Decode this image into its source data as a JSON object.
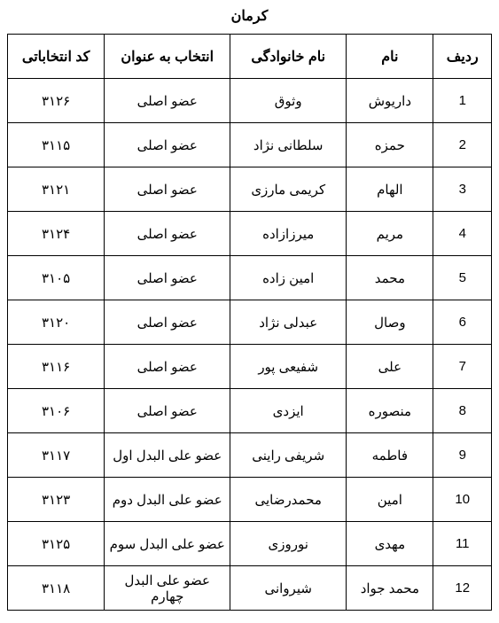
{
  "title": "کرمان",
  "columns": {
    "row": "ردیف",
    "fname": "نام",
    "lname": "نام خانوادگی",
    "role": "انتخاب به عنوان",
    "code": "کد انتخاباتی"
  },
  "rows": [
    {
      "row": "1",
      "fname": "داریوش",
      "lname": "وثوق",
      "role": "عضو اصلی",
      "code": "۳۱۲۶"
    },
    {
      "row": "2",
      "fname": "حمزه",
      "lname": "سلطانی نژاد",
      "role": "عضو اصلی",
      "code": "۳۱۱۵"
    },
    {
      "row": "3",
      "fname": "الهام",
      "lname": "کریمی مارزی",
      "role": "عضو اصلی",
      "code": "۳۱۲۱"
    },
    {
      "row": "4",
      "fname": "مریم",
      "lname": "میرزازاده",
      "role": "عضو اصلی",
      "code": "۳۱۲۴"
    },
    {
      "row": "5",
      "fname": "محمد",
      "lname": "امین زاده",
      "role": "عضو اصلی",
      "code": "۳۱۰۵"
    },
    {
      "row": "6",
      "fname": "وصال",
      "lname": "عبدلی نژاد",
      "role": "عضو اصلی",
      "code": "۳۱۲۰"
    },
    {
      "row": "7",
      "fname": "علی",
      "lname": "شفیعی پور",
      "role": "عضو اصلی",
      "code": "۳۱۱۶"
    },
    {
      "row": "8",
      "fname": "منصوره",
      "lname": "ایزدی",
      "role": "عضو اصلی",
      "code": "۳۱۰۶"
    },
    {
      "row": "9",
      "fname": "فاطمه",
      "lname": "شریفی راینی",
      "role": "عضو علی البدل اول",
      "code": "۳۱۱۷"
    },
    {
      "row": "10",
      "fname": "امین",
      "lname": "محمدرضایی",
      "role": "عضو علی البدل دوم",
      "code": "۳۱۲۳"
    },
    {
      "row": "11",
      "fname": "مهدی",
      "lname": "نوروزی",
      "role": "عضو علی البدل سوم",
      "code": "۳۱۲۵"
    },
    {
      "row": "12",
      "fname": "محمد جواد",
      "lname": "شیروانی",
      "role": "عضو علی البدل چهارم",
      "code": "۳۱۱۸"
    }
  ]
}
